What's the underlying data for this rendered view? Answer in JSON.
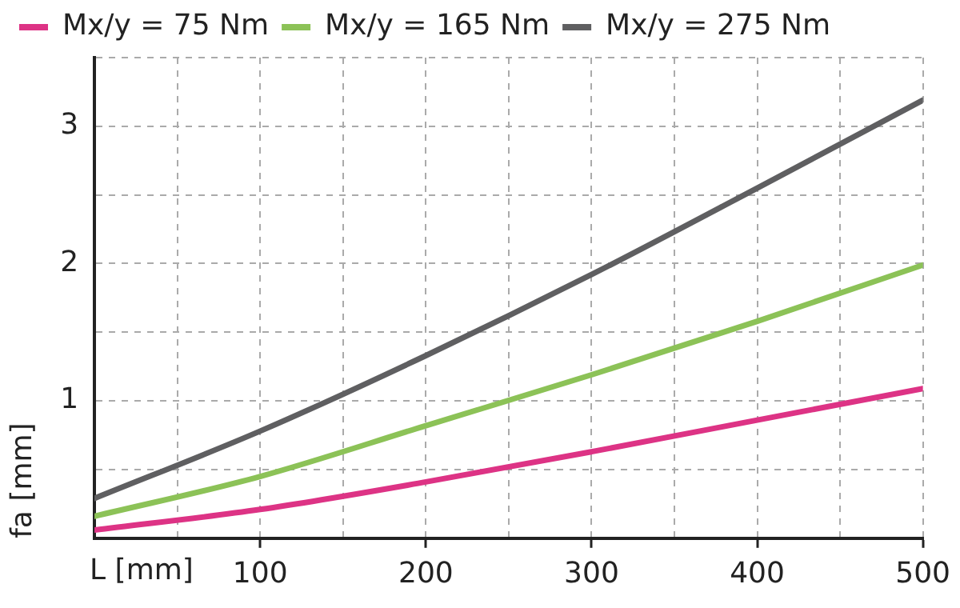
{
  "chart_data": {
    "type": "line",
    "xlabel": "L [mm]",
    "ylabel": "fa [mm]",
    "x": [
      0,
      100,
      200,
      300,
      400,
      500
    ],
    "series": [
      {
        "name": "Mx/y = 75 Nm",
        "color": "#dd3385",
        "values": [
          0.06,
          0.21,
          0.41,
          0.63,
          0.86,
          1.09
        ]
      },
      {
        "name": "Mx/y = 165 Nm",
        "color": "#8cc257",
        "values": [
          0.16,
          0.45,
          0.82,
          1.19,
          1.58,
          1.99
        ]
      },
      {
        "name": "Mx/y = 275 Nm",
        "color": "#5f5f61",
        "values": [
          0.29,
          0.78,
          1.33,
          1.92,
          2.55,
          3.19
        ]
      }
    ],
    "xlim": [
      0,
      500
    ],
    "xticks": [
      {
        "value": 0,
        "label": null
      },
      {
        "value": 50,
        "label": null
      },
      100,
      {
        "value": 150,
        "label": null
      },
      200,
      {
        "value": 250,
        "label": null
      },
      300,
      {
        "value": 350,
        "label": null
      },
      400,
      {
        "value": 450,
        "label": null
      },
      500
    ],
    "ylim": [
      0,
      3.5
    ],
    "yticks": [
      {
        "value": 0,
        "label": null
      },
      {
        "value": 0.5,
        "label": null
      },
      1,
      {
        "value": 1.5,
        "label": null
      },
      2,
      {
        "value": 2.5,
        "label": null
      },
      3,
      {
        "value": 3.5,
        "label": null
      }
    ],
    "grid": true,
    "legend": "top left",
    "marker": "none",
    "line_style": "solid"
  }
}
